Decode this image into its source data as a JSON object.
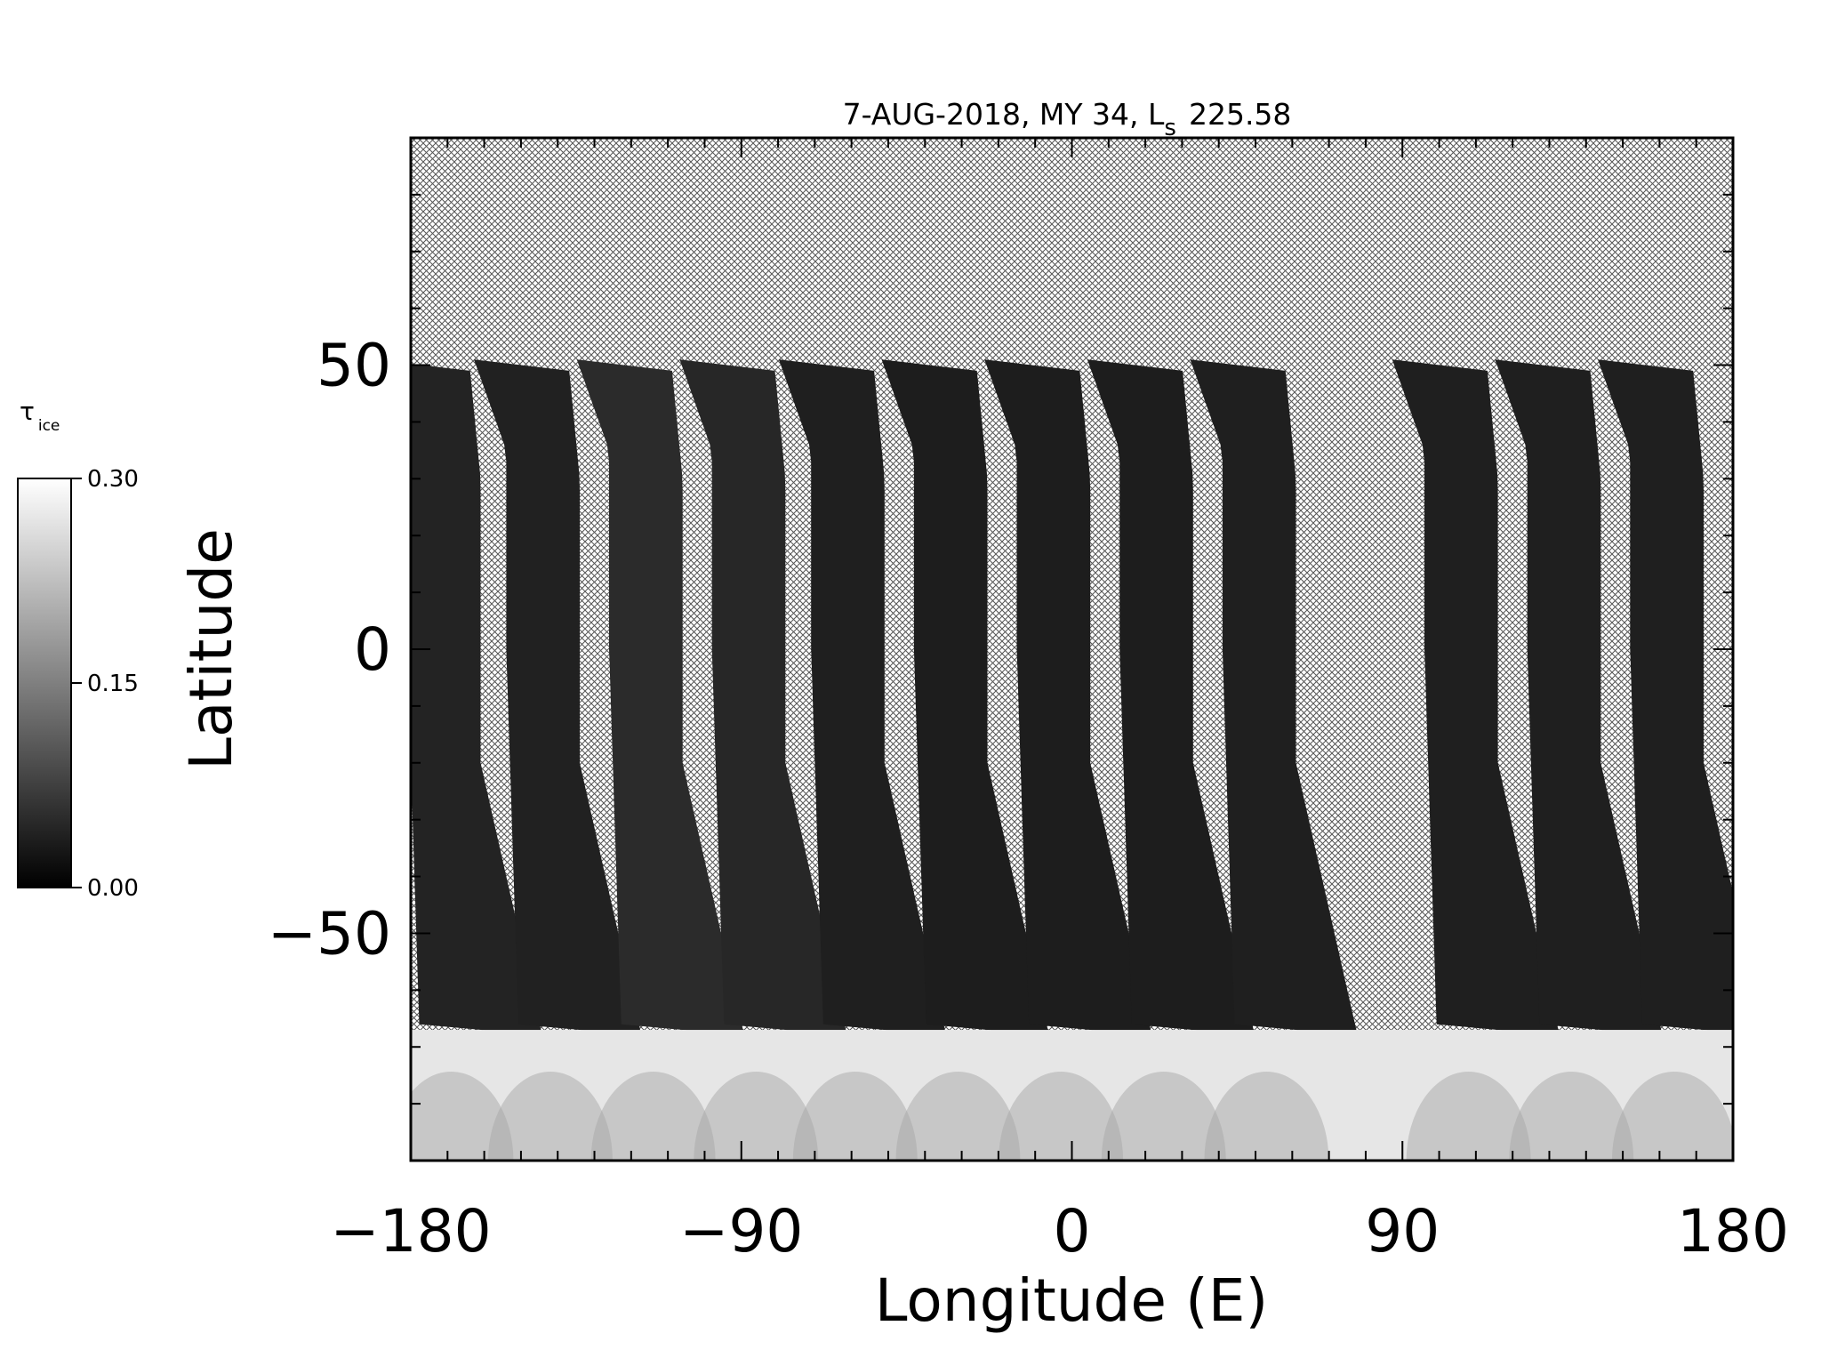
{
  "chart_data": {
    "type": "heatmap",
    "title": {
      "main": "7-AUG-2018, MY 34,  L",
      "subscript": "s",
      "value": "225.58"
    },
    "xlabel": "Longitude (E)",
    "ylabel": "Latitude",
    "xlim": [
      -180,
      180
    ],
    "ylim": [
      -90,
      90
    ],
    "xticks": [
      -180,
      -90,
      0,
      90,
      180
    ],
    "yticks": [
      -50,
      0,
      50
    ],
    "xtick_labels": [
      "−180",
      "−90",
      "0",
      "90",
      "180"
    ],
    "ytick_labels": [
      "−50",
      "0",
      "50"
    ],
    "colorbar": {
      "label": "τ",
      "label_subscript": "ice",
      "min": 0.0,
      "max": 0.3,
      "ticks": [
        0.0,
        0.15,
        0.3
      ],
      "tick_labels": [
        "0.00",
        "0.15",
        "0.30"
      ],
      "colormap": "grayscale"
    },
    "no_data_pattern": "crosshatch",
    "orbit_swaths": [
      {
        "lon_center": -173,
        "ice_max_north_of_polar_edge": 0.08
      },
      {
        "lon_center": -146,
        "ice_max_north_of_polar_edge": 0.07
      },
      {
        "lon_center": -118,
        "ice_max_north_of_polar_edge": 0.12
      },
      {
        "lon_center": -90,
        "ice_max_north_of_polar_edge": 0.1
      },
      {
        "lon_center": -63,
        "ice_max_north_of_polar_edge": 0.06
      },
      {
        "lon_center": -35,
        "ice_max_north_of_polar_edge": 0.05
      },
      {
        "lon_center": -7,
        "ice_max_north_of_polar_edge": 0.05
      },
      {
        "lon_center": 21,
        "ice_max_north_of_polar_edge": 0.05
      },
      {
        "lon_center": 49,
        "ice_max_north_of_polar_edge": 0.06
      },
      {
        "lon_center": 104,
        "ice_max_north_of_polar_edge": 0.06
      },
      {
        "lon_center": 132,
        "ice_max_north_of_polar_edge": 0.06
      },
      {
        "lon_center": 160,
        "ice_max_north_of_polar_edge": 0.06
      }
    ],
    "polar_hood_edge_lat": -67,
    "polar_hood_ice_typical": 0.28
  }
}
